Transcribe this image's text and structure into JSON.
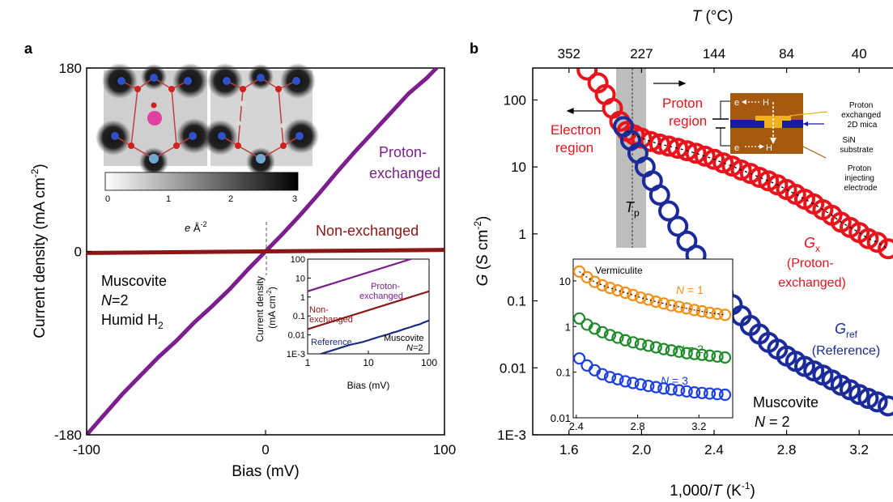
{
  "figure": {
    "panel_a_letter": "a",
    "panel_b_letter": "b"
  },
  "chart_data": [
    {
      "type": "line",
      "panel": "a",
      "xlabel": "Bias (mV)",
      "ylabel": "Current density (mA cm",
      "ylabel_sup": "-2",
      "ylabel_close": ")",
      "xlim": [
        -100,
        100
      ],
      "ylim": [
        -180,
        180
      ],
      "x_ticks": [
        "-100",
        "0",
        "100"
      ],
      "y_ticks": [
        "-180",
        "0",
        "180"
      ],
      "series": [
        {
          "name": "Proton-",
          "name2": "exchanged",
          "color": "#7b1f8c",
          "x": [
            -100,
            -90,
            -80,
            -70,
            -60,
            -50,
            -40,
            -30,
            -20,
            -10,
            0,
            10,
            20,
            30,
            40,
            50,
            60,
            70,
            80,
            90,
            100
          ],
          "y": [
            -180,
            -160,
            -140,
            -122,
            -104,
            -88,
            -70,
            -54,
            -37,
            -18,
            0,
            18,
            37,
            57,
            78,
            98,
            117,
            136,
            155,
            170,
            188
          ]
        },
        {
          "name": "Non-exchanged",
          "color": "#8a1616",
          "x": [
            -100,
            100
          ],
          "y": [
            -1.5,
            1.5
          ]
        }
      ],
      "annotations": {
        "sample_line1": "Muscovite",
        "sample_line2_n": "N",
        "sample_line2_rest": "=2",
        "sample_line3": "Humid H",
        "sample_line3_sub": "2",
        "colorbar_ticks": [
          "0",
          "1",
          "2",
          "3"
        ],
        "colorbar_unit_e": "e",
        "colorbar_unit_rest": " Å",
        "colorbar_unit_sup": "-2"
      },
      "inset": {
        "type": "line",
        "scale": "log-log",
        "xlabel": "Bias (mV)",
        "ylabel1": "Current density",
        "ylabel2": "(mA cm",
        "ylabel2_sup": "-2",
        "ylabel2_close": ")",
        "xlim": [
          1,
          100
        ],
        "ylim": [
          0.001,
          100
        ],
        "x_ticks": [
          "1",
          "10",
          "100"
        ],
        "y_ticks": [
          "1E-3",
          "0.01",
          "0.1",
          "1",
          "10",
          "100"
        ],
        "sample_line1": "Muscovite",
        "sample_line2": "N",
        "sample_line2_rest": "=2",
        "series": [
          {
            "name": "Proton-",
            "name2": "exchanged",
            "color": "#7b1f8c",
            "x": [
              1,
              100
            ],
            "y": [
              2,
              200
            ]
          },
          {
            "name": "Non-",
            "name2": "exchanged",
            "color": "#8a1616",
            "x": [
              1,
              100
            ],
            "y": [
              0.02,
              2
            ]
          },
          {
            "name": "Reference",
            "color": "#1b2b80",
            "x": [
              1,
              1.5,
              2,
              3,
              4,
              5,
              6,
              8,
              10,
              12,
              15,
              20,
              25,
              30,
              40,
              50,
              60,
              70,
              80,
              100
            ],
            "y": [
              0.0006,
              0.0009,
              0.0012,
              0.0018,
              0.0024,
              0.003,
              0.0034,
              0.0042,
              0.0052,
              0.0063,
              0.0079,
              0.0101,
              0.013,
              0.0152,
              0.021,
              0.026,
              0.032,
              0.036,
              0.044,
              0.058
            ]
          }
        ]
      }
    },
    {
      "type": "scatter",
      "panel": "b",
      "scale_y": "log",
      "xlabel": "1,000/",
      "xlabel_italic": "T",
      "xlabel_rest": " (K",
      "xlabel_sup": "-1",
      "xlabel_close": ")",
      "ylabel_g": "G",
      "ylabel_rest": " (S cm",
      "ylabel_sup": "-2",
      "ylabel_close": ")",
      "top_xlabel_t": "T",
      "top_xlabel_rest": " (°C)",
      "xlim": [
        1.4,
        3.4
      ],
      "ylim": [
        0.001,
        300
      ],
      "x_ticks": [
        "1.6",
        "2.0",
        "2.4",
        "2.8",
        "3.2"
      ],
      "y_ticks": [
        "1E-3",
        "0.01",
        "0.1",
        "1",
        "10",
        "100"
      ],
      "top_ticks": [
        "352",
        "227",
        "144",
        "84",
        "40"
      ],
      "top_ticks_pos": [
        1.6,
        2.0,
        2.4,
        2.8,
        3.2
      ],
      "series": [
        {
          "name": "G",
          "name_sub": "x",
          "label2": "(Proton-",
          "label3": "exchanged)",
          "color": "#e8141b",
          "x": [
            1.7,
            1.76,
            1.8,
            1.84,
            1.88,
            1.92,
            1.96,
            2.0,
            2.05,
            2.1,
            2.15,
            2.2,
            2.25,
            2.3,
            2.35,
            2.4,
            2.45,
            2.5,
            2.55,
            2.6,
            2.65,
            2.7,
            2.75,
            2.8,
            2.85,
            2.9,
            2.95,
            3.0,
            3.05,
            3.1,
            3.15,
            3.2,
            3.25,
            3.3,
            3.36
          ],
          "y": [
            280,
            180,
            120,
            75,
            48,
            34,
            30,
            27,
            24,
            22,
            20.5,
            19,
            17.5,
            16,
            14.5,
            13,
            11.5,
            10.3,
            9,
            8,
            7,
            6.2,
            5.4,
            4.6,
            3.9,
            3.3,
            2.8,
            2.3,
            1.9,
            1.5,
            1.25,
            1.05,
            0.85,
            0.75,
            0.6
          ]
        },
        {
          "name": "G",
          "name_sub": "ref",
          "label2": "(Reference)",
          "color": "#1b2b9a",
          "x": [
            1.9,
            1.94,
            1.98,
            2.02,
            2.06,
            2.1,
            2.15,
            2.2,
            2.25,
            2.3,
            2.35,
            2.4,
            2.45,
            2.5,
            2.55,
            2.6,
            2.65,
            2.7,
            2.75,
            2.8,
            2.85,
            2.9,
            2.95,
            3.0,
            3.05,
            3.1,
            3.15,
            3.2,
            3.25,
            3.3,
            3.36
          ],
          "y": [
            40,
            25,
            16,
            10,
            6.2,
            3.8,
            2.2,
            1.3,
            0.78,
            0.48,
            0.3,
            0.2,
            0.13,
            0.088,
            0.06,
            0.043,
            0.032,
            0.024,
            0.019,
            0.015,
            0.0125,
            0.0105,
            0.009,
            0.0078,
            0.0066,
            0.0055,
            0.0047,
            0.004,
            0.0035,
            0.0031,
            0.0027
          ]
        }
      ],
      "annotations": {
        "proton_region": "Proton",
        "proton_region2": "region",
        "electron_region": "Electron",
        "electron_region2": "region",
        "tp_t": "T",
        "tp_sub": "p",
        "sample_line1": "Muscovite",
        "sample_line2_n": "N",
        "sample_line2_rest": " = 2",
        "schematic_e_top": "e",
        "schematic_h_top": "H",
        "schematic_e_bot": "e",
        "schematic_h_bot": "H",
        "schematic_label1a": "Proton",
        "schematic_label1b": "exchanged",
        "schematic_label1c": "2D mica",
        "schematic_label2a": "SiN",
        "schematic_label2b": "substrate",
        "schematic_label3a": "Proton",
        "schematic_label3b": "injecting",
        "schematic_label3c": "electrode"
      },
      "inset": {
        "type": "scatter",
        "scale_y": "log",
        "title": "Vermiculite",
        "xlim": [
          2.38,
          3.42
        ],
        "ylim": [
          0.01,
          30
        ],
        "x_ticks": [
          "2.4",
          "2.8",
          "3.2"
        ],
        "y_ticks": [
          "0.01",
          "0.1",
          "1",
          "10"
        ],
        "series": [
          {
            "label_n": "N",
            "label_rest": " = 1",
            "color": "#f39019",
            "x": [
              2.42,
              2.47,
              2.52,
              2.57,
              2.62,
              2.67,
              2.72,
              2.77,
              2.82,
              2.87,
              2.92,
              2.97,
              3.02,
              3.07,
              3.12,
              3.17,
              3.22,
              3.27,
              3.32,
              3.37
            ],
            "y": [
              16,
              12,
              9.5,
              8,
              7,
              6.2,
              5.5,
              4.9,
              4.3,
              3.9,
              3.5,
              3.2,
              2.9,
              2.7,
              2.5,
              2.3,
              2.15,
              2.0,
              1.9,
              1.8
            ]
          },
          {
            "label_n": "N",
            "label_rest": " = 2",
            "color": "#1f8a2a",
            "x": [
              2.42,
              2.47,
              2.52,
              2.57,
              2.62,
              2.67,
              2.72,
              2.77,
              2.82,
              2.87,
              2.92,
              2.97,
              3.02,
              3.07,
              3.12,
              3.17,
              3.22,
              3.27,
              3.32,
              3.37
            ],
            "y": [
              1.5,
              1.1,
              0.9,
              0.75,
              0.65,
              0.57,
              0.5,
              0.45,
              0.41,
              0.38,
              0.35,
              0.32,
              0.3,
              0.28,
              0.26,
              0.25,
              0.24,
              0.23,
              0.22,
              0.21
            ]
          },
          {
            "label_n": "N",
            "label_rest": " = 3",
            "color": "#1b3fe0",
            "x": [
              2.42,
              2.47,
              2.52,
              2.57,
              2.62,
              2.67,
              2.72,
              2.77,
              2.82,
              2.87,
              2.92,
              2.97,
              3.02,
              3.07,
              3.12,
              3.17,
              3.22,
              3.27,
              3.32,
              3.37
            ],
            "y": [
              0.2,
              0.14,
              0.11,
              0.09,
              0.078,
              0.07,
              0.063,
              0.058,
              0.054,
              0.05,
              0.047,
              0.044,
              0.042,
              0.04,
              0.038,
              0.036,
              0.035,
              0.034,
              0.033,
              0.032
            ]
          }
        ]
      }
    }
  ]
}
